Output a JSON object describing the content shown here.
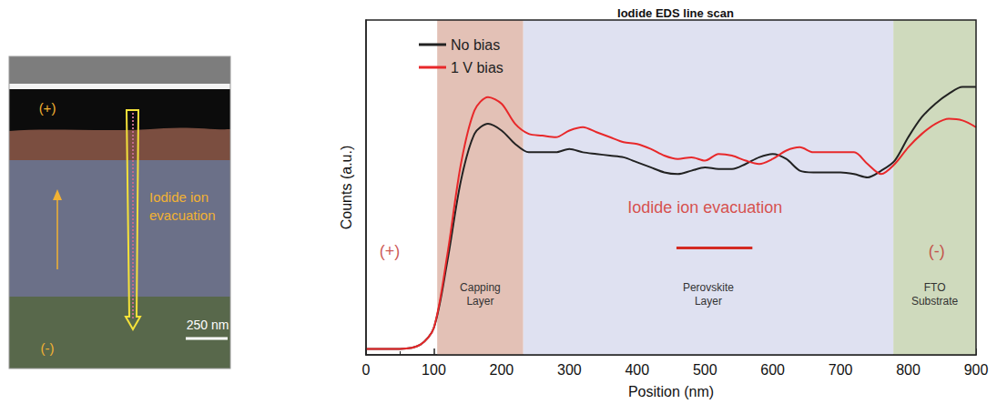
{
  "chart_data": {
    "type": "line",
    "title": "Iodide EDS line scan",
    "x_label": "Position (nm)",
    "y_label": "Counts (a.u.)",
    "xlim": [
      0,
      900
    ],
    "xticks": [
      0,
      100,
      200,
      300,
      400,
      500,
      600,
      700,
      800,
      900
    ],
    "ylim": [
      0,
      100
    ],
    "yticks": [],
    "tick_labels": "x",
    "grid": false,
    "legend": "top",
    "x": [
      0,
      50,
      80,
      100,
      120,
      140,
      160,
      180,
      200,
      220,
      240,
      260,
      280,
      300,
      320,
      340,
      360,
      380,
      400,
      420,
      440,
      460,
      480,
      500,
      520,
      540,
      560,
      580,
      600,
      620,
      640,
      660,
      680,
      700,
      720,
      740,
      760,
      780,
      800,
      820,
      840,
      860,
      880,
      900
    ],
    "series": [
      {
        "name": "No bias",
        "color": "#222222",
        "values": [
          1.8,
          1.8,
          3,
          8,
          28,
          52,
          66,
          69,
          67,
          63,
          60.5,
          60.5,
          60.5,
          61.5,
          60.5,
          60,
          59.5,
          59,
          57.5,
          56,
          54.5,
          54,
          55,
          56,
          55.5,
          55.5,
          57,
          59,
          60,
          58.5,
          55,
          54.5,
          54.5,
          54.5,
          54,
          53,
          55,
          58,
          65,
          71,
          75,
          78,
          80,
          80
        ]
      },
      {
        "name": "1 V bias",
        "color": "#e8282a",
        "values": [
          1.8,
          1.8,
          3,
          8,
          30,
          57,
          73,
          77,
          75,
          69,
          66,
          65.5,
          65,
          67,
          68,
          66.5,
          65,
          63.5,
          63,
          61.5,
          59.5,
          58.5,
          59,
          58,
          60,
          59.5,
          58,
          57,
          58.5,
          61,
          62,
          60.5,
          60.5,
          60.5,
          60.5,
          57,
          54,
          57,
          62,
          66,
          69,
          70.5,
          70,
          68
        ]
      }
    ],
    "regions": [
      {
        "label": "Capping Layer",
        "start": 105,
        "end": 232,
        "color": "#e3c1b6"
      },
      {
        "label": "Perovskite Layer",
        "start": 232,
        "end": 778,
        "color": "#dfe1f1"
      },
      {
        "label": "FTO Substrate",
        "start": 778,
        "end": 900,
        "color": "#cfdabd"
      }
    ],
    "annotations": [
      {
        "text": "(+)",
        "color": "#c0302a"
      },
      {
        "text": "Iodide ion evacuation",
        "color": "#d42a22"
      },
      {
        "text": "(-)",
        "color": "#c0302a"
      }
    ]
  },
  "micrograph": {
    "plus_label": "(+)",
    "minus_label": "(-)",
    "annotation": "Iodide ion evacuation",
    "scale_bar": "250 nm",
    "color": "#f2b233"
  }
}
